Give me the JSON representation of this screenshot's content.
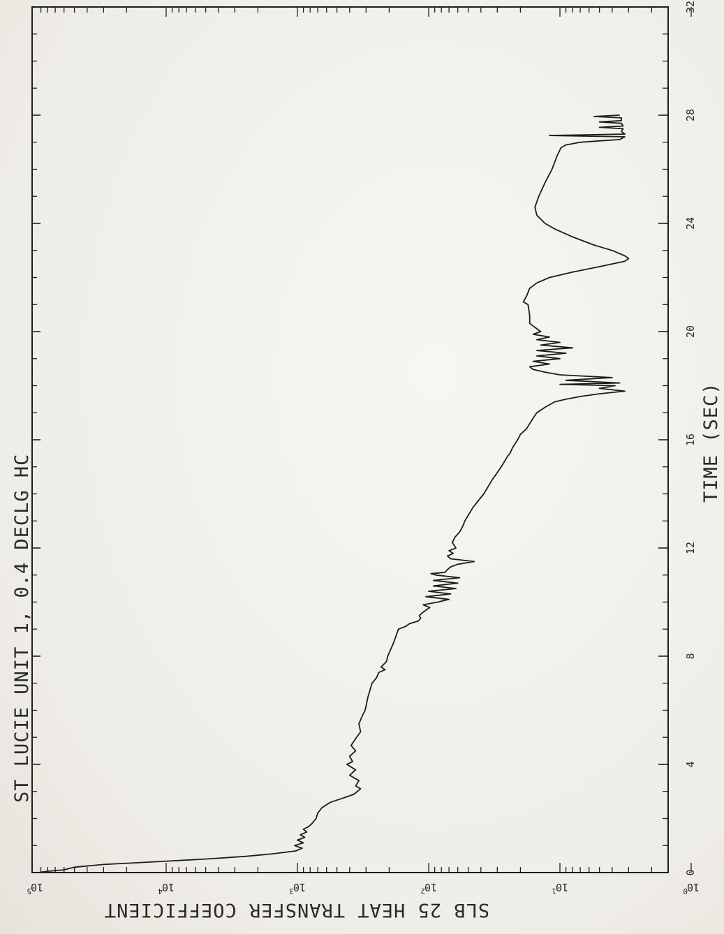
{
  "chart_data": {
    "type": "line",
    "title": "ST LUCIE UNIT 1, 0.4 DECLG HC",
    "xlabel": "TIME (SEC)",
    "ylabel": "SLB 25   HEAT TRANSFER COEFFICIENT",
    "xlim": [
      0,
      32
    ],
    "ylim": [
      1,
      100000
    ],
    "yscale": "log",
    "x_ticks": [
      "0",
      "4",
      "8",
      "12",
      "16",
      "20",
      "24",
      "28",
      "32"
    ],
    "y_ticks": [
      {
        "base": "10",
        "exp": "0"
      },
      {
        "base": "10",
        "exp": "1"
      },
      {
        "base": "10",
        "exp": "2"
      },
      {
        "base": "10",
        "exp": "3"
      },
      {
        "base": "10",
        "exp": "4"
      },
      {
        "base": "10",
        "exp": "5"
      }
    ],
    "grid": false,
    "series": [
      {
        "color": "#1c1c1c",
        "points": [
          [
            0.0,
            95000
          ],
          [
            0.05,
            80000
          ],
          [
            0.1,
            60000
          ],
          [
            0.15,
            55000
          ],
          [
            0.2,
            50000
          ],
          [
            0.3,
            30000
          ],
          [
            0.4,
            12000
          ],
          [
            0.5,
            5000
          ],
          [
            0.6,
            2500
          ],
          [
            0.7,
            1500
          ],
          [
            0.8,
            1030
          ],
          [
            0.9,
            920
          ],
          [
            1.0,
            1050
          ],
          [
            1.1,
            900
          ],
          [
            1.2,
            1000
          ],
          [
            1.3,
            880
          ],
          [
            1.4,
            950
          ],
          [
            1.5,
            850
          ],
          [
            1.6,
            900
          ],
          [
            1.7,
            820
          ],
          [
            1.8,
            780
          ],
          [
            1.9,
            750
          ],
          [
            2.0,
            720
          ],
          [
            2.2,
            700
          ],
          [
            2.4,
            650
          ],
          [
            2.6,
            560
          ],
          [
            2.8,
            420
          ],
          [
            2.9,
            370
          ],
          [
            3.0,
            350
          ],
          [
            3.1,
            330
          ],
          [
            3.2,
            360
          ],
          [
            3.4,
            340
          ],
          [
            3.6,
            400
          ],
          [
            3.8,
            360
          ],
          [
            4.0,
            420
          ],
          [
            4.1,
            380
          ],
          [
            4.3,
            400
          ],
          [
            4.5,
            360
          ],
          [
            4.7,
            390
          ],
          [
            5.0,
            355
          ],
          [
            5.2,
            330
          ],
          [
            5.5,
            340
          ],
          [
            5.8,
            320
          ],
          [
            6.0,
            305
          ],
          [
            6.5,
            290
          ],
          [
            7.0,
            270
          ],
          [
            7.2,
            250
          ],
          [
            7.4,
            240
          ],
          [
            7.5,
            215
          ],
          [
            7.6,
            230
          ],
          [
            7.8,
            210
          ],
          [
            8.0,
            205
          ],
          [
            8.5,
            185
          ],
          [
            9.0,
            170
          ],
          [
            9.1,
            150
          ],
          [
            9.2,
            140
          ],
          [
            9.3,
            120
          ],
          [
            9.4,
            115
          ],
          [
            9.5,
            118
          ],
          [
            9.6,
            112
          ],
          [
            9.7,
            105
          ],
          [
            9.8,
            98
          ],
          [
            9.9,
            110
          ],
          [
            10.0,
            85
          ],
          [
            10.1,
            70
          ],
          [
            10.2,
            105
          ],
          [
            10.3,
            68
          ],
          [
            10.4,
            100
          ],
          [
            10.5,
            62
          ],
          [
            10.6,
            92
          ],
          [
            10.7,
            60
          ],
          [
            10.8,
            92
          ],
          [
            10.9,
            58
          ],
          [
            11.0,
            88
          ],
          [
            11.05,
            96
          ],
          [
            11.1,
            75
          ],
          [
            11.2,
            72
          ],
          [
            11.3,
            68
          ],
          [
            11.4,
            60
          ],
          [
            11.5,
            45
          ],
          [
            11.6,
            68
          ],
          [
            11.7,
            72
          ],
          [
            11.8,
            65
          ],
          [
            11.9,
            70
          ],
          [
            12.0,
            62
          ],
          [
            12.2,
            66
          ],
          [
            12.4,
            63
          ],
          [
            12.6,
            58
          ],
          [
            12.8,
            55
          ],
          [
            13.0,
            53
          ],
          [
            13.5,
            46
          ],
          [
            14.0,
            38
          ],
          [
            14.5,
            33
          ],
          [
            15.0,
            28
          ],
          [
            15.4,
            25
          ],
          [
            15.5,
            24
          ],
          [
            15.7,
            23
          ],
          [
            16.0,
            21
          ],
          [
            16.2,
            20
          ],
          [
            16.4,
            18
          ],
          [
            16.6,
            17
          ],
          [
            16.8,
            16
          ],
          [
            17.0,
            15
          ],
          [
            17.2,
            13
          ],
          [
            17.4,
            11
          ],
          [
            17.5,
            9
          ],
          [
            17.6,
            7
          ],
          [
            17.7,
            5
          ],
          [
            17.8,
            3.2
          ],
          [
            17.9,
            5
          ],
          [
            18.0,
            3.8
          ],
          [
            18.05,
            10
          ],
          [
            18.1,
            3.5
          ],
          [
            18.2,
            9
          ],
          [
            18.3,
            4
          ],
          [
            18.4,
            10
          ],
          [
            18.5,
            13
          ],
          [
            18.6,
            16
          ],
          [
            18.7,
            17
          ],
          [
            18.8,
            12
          ],
          [
            18.9,
            16
          ],
          [
            19.0,
            10
          ],
          [
            19.1,
            15
          ],
          [
            19.2,
            9
          ],
          [
            19.3,
            15
          ],
          [
            19.4,
            8
          ],
          [
            19.5,
            14
          ],
          [
            19.6,
            10
          ],
          [
            19.7,
            15
          ],
          [
            19.8,
            12
          ],
          [
            19.9,
            16
          ],
          [
            20.0,
            14
          ],
          [
            20.3,
            17
          ],
          [
            20.6,
            17
          ],
          [
            21.0,
            17.5
          ],
          [
            21.1,
            19
          ],
          [
            21.3,
            18
          ],
          [
            21.6,
            17
          ],
          [
            21.8,
            15
          ],
          [
            22.0,
            12
          ],
          [
            22.2,
            8
          ],
          [
            22.4,
            5
          ],
          [
            22.5,
            4
          ],
          [
            22.6,
            3.2
          ],
          [
            22.7,
            3.0
          ],
          [
            22.8,
            3.2
          ],
          [
            23.0,
            4
          ],
          [
            23.2,
            5.5
          ],
          [
            23.5,
            8
          ],
          [
            23.8,
            11
          ],
          [
            24.0,
            13
          ],
          [
            24.3,
            15
          ],
          [
            24.6,
            15.5
          ],
          [
            25.0,
            14.5
          ],
          [
            25.5,
            13
          ],
          [
            26.0,
            11.5
          ],
          [
            26.5,
            10.5
          ],
          [
            26.8,
            9.8
          ],
          [
            26.9,
            9
          ],
          [
            27.0,
            7
          ],
          [
            27.05,
            5
          ],
          [
            27.1,
            3.5
          ],
          [
            27.2,
            3.2
          ],
          [
            27.25,
            12
          ],
          [
            27.3,
            3.2
          ],
          [
            27.4,
            3.4
          ],
          [
            27.5,
            3.3
          ],
          [
            27.55,
            5
          ],
          [
            27.6,
            3.3
          ],
          [
            27.7,
            3.4
          ],
          [
            27.75,
            5
          ],
          [
            27.8,
            3.4
          ],
          [
            27.9,
            3.4
          ],
          [
            27.95,
            5.5
          ],
          [
            28.0,
            3.5
          ]
        ]
      }
    ]
  }
}
